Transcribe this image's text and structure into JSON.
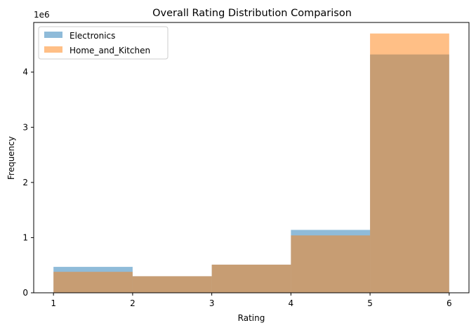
{
  "chart_data": {
    "type": "bar",
    "subtype": "histogram-overlay",
    "title": "Overall Rating Distribution Comparison",
    "xlabel": "Rating",
    "ylabel": "Frequency",
    "y_offset_label": "1e6",
    "xlim": [
      1,
      6
    ],
    "ylim": [
      0,
      4.9
    ],
    "xticks": [
      "1",
      "2",
      "3",
      "4",
      "5",
      "6"
    ],
    "yticks": [
      "0",
      "1",
      "2",
      "3",
      "4"
    ],
    "bins": [
      [
        1,
        2
      ],
      [
        2,
        3
      ],
      [
        3,
        4
      ],
      [
        4,
        5
      ],
      [
        5,
        6
      ]
    ],
    "value_unit": "millions (x 1e6)",
    "series": [
      {
        "name": "Electronics",
        "color": "#1f77b4",
        "alpha": 0.5,
        "values": [
          0.47,
          0.3,
          0.51,
          1.14,
          4.32
        ]
      },
      {
        "name": "Home_and_Kitchen",
        "color": "#ff7f0e",
        "alpha": 0.5,
        "values": [
          0.38,
          0.3,
          0.51,
          1.04,
          4.7
        ]
      }
    ],
    "grid": false,
    "legend_position": "top-left"
  }
}
